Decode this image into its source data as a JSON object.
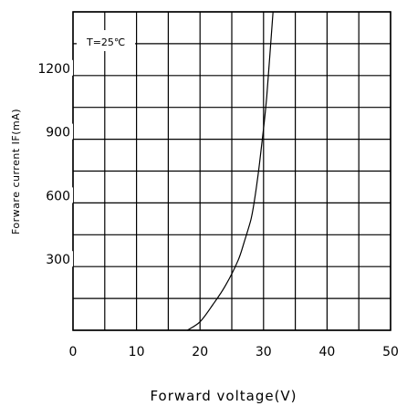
{
  "chart_data": {
    "type": "line",
    "xlabel": "Forward voltage(V)",
    "ylabel": "Forware current IF(mA)",
    "annotation": "T=25℃",
    "xlim": [
      0,
      50
    ],
    "ylim": [
      0,
      1500
    ],
    "x_ticks": [
      {
        "value": 0,
        "label": "0"
      },
      {
        "value": 10,
        "label": "10"
      },
      {
        "value": 20,
        "label": "20"
      },
      {
        "value": 30,
        "label": "30"
      },
      {
        "value": 40,
        "label": "40"
      },
      {
        "value": 50,
        "label": "50"
      }
    ],
    "y_ticks": [
      {
        "value": 300,
        "label": "300"
      },
      {
        "value": 600,
        "label": "600"
      },
      {
        "value": 900,
        "label": "900"
      },
      {
        "value": 1200,
        "label": "1200"
      }
    ],
    "grid": true,
    "series": [
      {
        "x": [
          18.0,
          20.0,
          22.0,
          24.0,
          26.0,
          27.0,
          28.0,
          28.5,
          29.0,
          29.5,
          30.0,
          30.5,
          31.0,
          31.5
        ],
        "y": [
          0,
          40,
          120,
          210,
          330,
          420,
          520,
          600,
          700,
          820,
          950,
          1100,
          1300,
          1500
        ],
        "color": "#000000"
      }
    ]
  }
}
